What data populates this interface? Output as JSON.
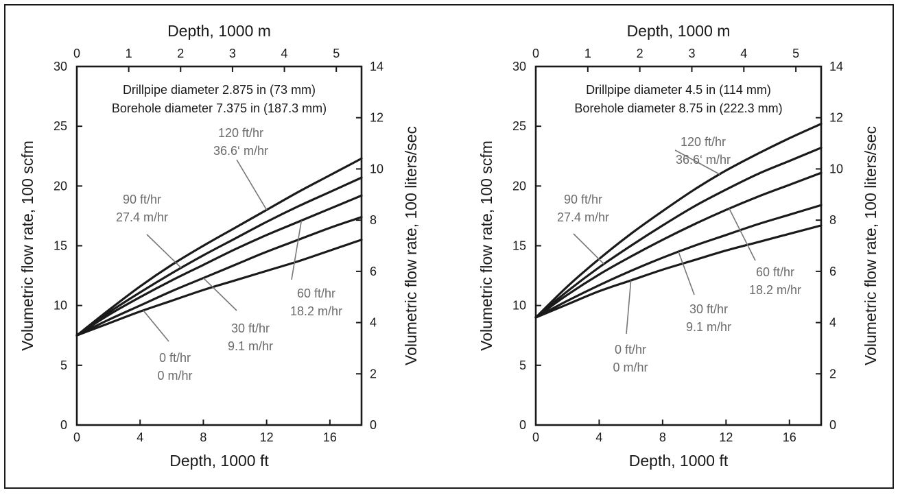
{
  "chart_data": [
    {
      "type": "line",
      "title": "",
      "xlabel": "Depth, 1000 ft",
      "ylabel": "Volumetric flow rate, 100 scfm",
      "x2label": "Depth, 1000 m",
      "y2label": "Volumetric flow rate, 100 liters/sec",
      "xlim": [
        0,
        18
      ],
      "ylim": [
        0,
        30
      ],
      "x2lim": [
        0,
        5.4864
      ],
      "y2lim": [
        0,
        14
      ],
      "xticks": [
        "0",
        "4",
        "8",
        "12",
        "16"
      ],
      "yticks": [
        "0",
        "5",
        "10",
        "15",
        "20",
        "25",
        "30"
      ],
      "x2ticks": [
        "0",
        "1",
        "2",
        "3",
        "4",
        "5"
      ],
      "y2ticks": [
        "0",
        "2",
        "4",
        "6",
        "8",
        "10",
        "12",
        "14"
      ],
      "specs": [
        "Drillpipe diameter 2.875 in (73 mm)",
        "Borehole diameter 7.375  in (187.3 mm)"
      ],
      "grid": false,
      "series": [
        {
          "x": [
            0,
            2,
            4,
            6,
            8,
            10,
            12,
            14,
            16,
            18
          ],
          "values": [
            7.5,
            8.5,
            9.5,
            10.4,
            11.3,
            12.1,
            12.9,
            13.7,
            14.6,
            15.5
          ]
        },
        {
          "x": [
            0,
            2,
            4,
            6,
            8,
            10,
            12,
            14,
            16,
            18
          ],
          "values": [
            7.5,
            8.8,
            10.0,
            11.2,
            12.3,
            13.4,
            14.5,
            15.5,
            16.5,
            17.4
          ]
        },
        {
          "x": [
            0,
            2,
            4,
            6,
            8,
            10,
            12,
            14,
            16,
            18
          ],
          "values": [
            7.5,
            9.2,
            10.7,
            12.1,
            13.4,
            14.7,
            15.9,
            17.0,
            18.1,
            19.2
          ]
        },
        {
          "x": [
            0,
            2,
            4,
            6,
            8,
            10,
            12,
            14,
            16,
            18
          ],
          "values": [
            7.5,
            9.4,
            11.1,
            12.7,
            14.2,
            15.6,
            17.0,
            18.3,
            19.5,
            20.7
          ]
        },
        {
          "x": [
            0,
            2,
            4,
            6,
            8,
            10,
            12,
            14,
            16,
            18
          ],
          "values": [
            7.5,
            9.6,
            11.6,
            13.4,
            15.0,
            16.5,
            18.0,
            19.5,
            20.9,
            22.3
          ]
        }
      ],
      "annotations": [
        {
          "lines": [
            "120 ft/hr",
            "36.6‘ m/hr"
          ]
        },
        {
          "lines": [
            "90 ft/hr",
            "27.4 m/hr"
          ]
        },
        {
          "lines": [
            "60 ft/hr",
            "18.2 m/hr"
          ]
        },
        {
          "lines": [
            "30 ft/hr",
            "9.1 m/hr"
          ]
        },
        {
          "lines": [
            "0 ft/hr",
            "0 m/hr"
          ]
        }
      ]
    },
    {
      "type": "line",
      "title": "",
      "xlabel": "Depth, 1000 ft",
      "ylabel": "Volumetric flow rate, 100 scfm",
      "x2label": "Depth, 1000 m",
      "y2label": "Volumetric flow rate, 100 liters/sec",
      "xlim": [
        0,
        18
      ],
      "ylim": [
        0,
        30
      ],
      "x2lim": [
        0,
        5.4864
      ],
      "y2lim": [
        0,
        14
      ],
      "xticks": [
        "0",
        "4",
        "8",
        "12",
        "16"
      ],
      "yticks": [
        "0",
        "5",
        "10",
        "15",
        "20",
        "25",
        "30"
      ],
      "x2ticks": [
        "0",
        "1",
        "2",
        "3",
        "4",
        "5"
      ],
      "y2ticks": [
        "0",
        "2",
        "4",
        "6",
        "8",
        "10",
        "12",
        "14"
      ],
      "specs": [
        "Drillpipe diameter 4.5 in (114 mm)",
        "Borehole diameter 8.75  in (222.3 mm)"
      ],
      "grid": false,
      "series": [
        {
          "x": [
            0,
            2,
            4,
            6,
            8,
            10,
            12,
            14,
            16,
            18
          ],
          "values": [
            9.0,
            10.1,
            11.2,
            12.1,
            13.0,
            13.8,
            14.6,
            15.3,
            16.0,
            16.7
          ]
        },
        {
          "x": [
            0,
            2,
            4,
            6,
            8,
            10,
            12,
            14,
            16,
            18
          ],
          "values": [
            9.0,
            10.4,
            11.7,
            12.9,
            14.0,
            15.0,
            15.9,
            16.8,
            17.6,
            18.4
          ]
        },
        {
          "x": [
            0,
            2,
            4,
            6,
            8,
            10,
            12,
            14,
            16,
            18
          ],
          "values": [
            9.0,
            10.9,
            12.6,
            14.1,
            15.5,
            16.8,
            18.0,
            19.1,
            20.1,
            21.1
          ]
        },
        {
          "x": [
            0,
            2,
            4,
            6,
            8,
            10,
            12,
            14,
            16,
            18
          ],
          "values": [
            9.0,
            11.2,
            13.2,
            15.0,
            16.7,
            18.3,
            19.7,
            21.0,
            22.1,
            23.2
          ]
        },
        {
          "x": [
            0,
            2,
            4,
            6,
            8,
            10,
            12,
            14,
            16,
            18
          ],
          "values": [
            9.0,
            11.6,
            13.9,
            16.0,
            17.9,
            19.7,
            21.3,
            22.7,
            24.0,
            25.2
          ]
        }
      ],
      "annotations": [
        {
          "lines": [
            "120 ft/hr",
            "36.6‘ m/hr"
          ]
        },
        {
          "lines": [
            "90 ft/hr",
            "27.4 m/hr"
          ]
        },
        {
          "lines": [
            "60 ft/hr",
            "18.2 m/hr"
          ]
        },
        {
          "lines": [
            "30 ft/hr",
            "9.1 m/hr"
          ]
        },
        {
          "lines": [
            "0 ft/hr",
            "0 m/hr"
          ]
        }
      ]
    }
  ]
}
